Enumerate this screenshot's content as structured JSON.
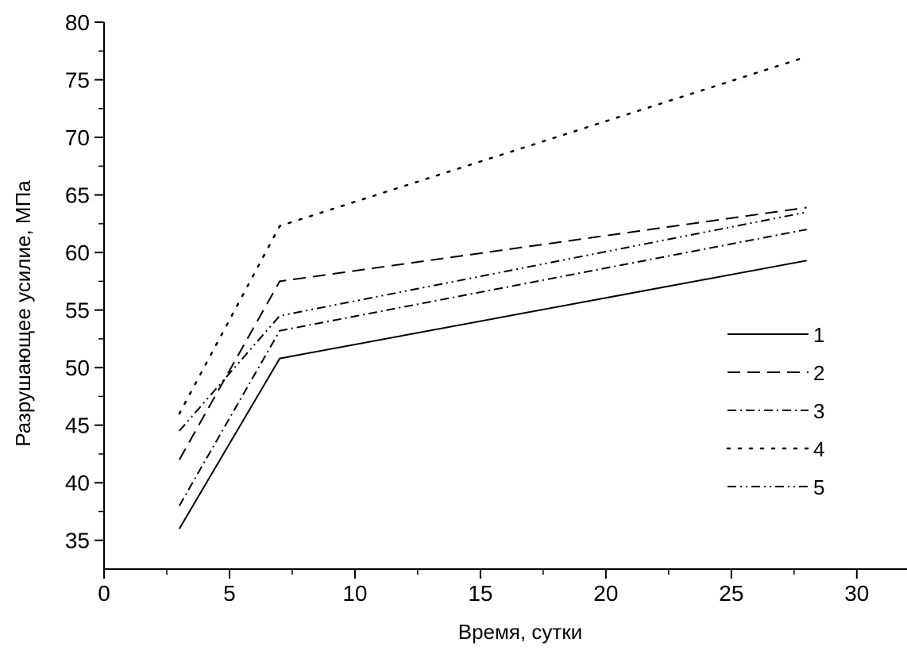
{
  "chart_data": {
    "type": "line",
    "title": "",
    "xlabel": "Время, сутки",
    "ylabel": "Разрушающее усилие, МПа",
    "xlim": [
      0,
      32
    ],
    "ylim": [
      32.5,
      80
    ],
    "x_ticks": [
      0,
      5,
      10,
      15,
      20,
      25,
      30
    ],
    "y_ticks": [
      35,
      40,
      45,
      50,
      55,
      60,
      65,
      70,
      75,
      80
    ],
    "grid": false,
    "legend_position": "right",
    "x": [
      3,
      7,
      28
    ],
    "series": [
      {
        "name": "1",
        "style": "solid",
        "values": [
          36.0,
          50.8,
          59.3
        ]
      },
      {
        "name": "2",
        "style": "dash",
        "values": [
          42.0,
          57.5,
          63.9
        ]
      },
      {
        "name": "3",
        "style": "dash-dot",
        "values": [
          38.0,
          53.2,
          62.0
        ]
      },
      {
        "name": "4",
        "style": "dot",
        "values": [
          46.0,
          62.3,
          77.0
        ]
      },
      {
        "name": "5",
        "style": "dash-dot-dot",
        "values": [
          44.5,
          54.5,
          63.5
        ]
      }
    ]
  }
}
